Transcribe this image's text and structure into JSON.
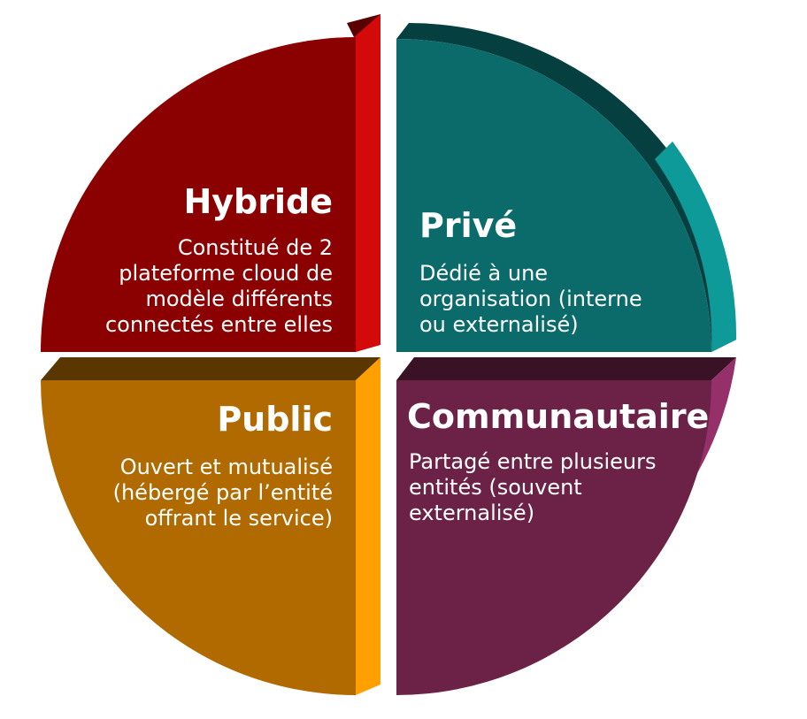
{
  "quadrants": {
    "hybride": {
      "title": "Hybride",
      "lines": [
        "Constitué de 2",
        "plateforme cloud de",
        "modèle différents",
        "connectés entre elles"
      ],
      "color": "#8b0000",
      "side_color": "#d40a0a",
      "top_color": "#5a0000"
    },
    "prive": {
      "title": "Privé",
      "lines": [
        "Dédié à une",
        "organisation (interne",
        "ou externalisé)"
      ],
      "color": "#0b6b6b",
      "side_color": "#0f9a9a",
      "top_color": "#053f3f"
    },
    "public": {
      "title": "Public",
      "lines": [
        "Ouvert et mutualisé",
        "(hébergé par l’entité",
        "offrant le service)"
      ],
      "color": "#b06a00",
      "side_color": "#ffa000",
      "top_color": "#5a3600"
    },
    "communautaire": {
      "title": "Communautaire",
      "lines": [
        "Partagé entre plusieurs",
        "entités (souvent",
        "externalisé)"
      ],
      "color": "#6b2246",
      "side_color": "#96306a",
      "top_color": "#3a1226"
    }
  }
}
